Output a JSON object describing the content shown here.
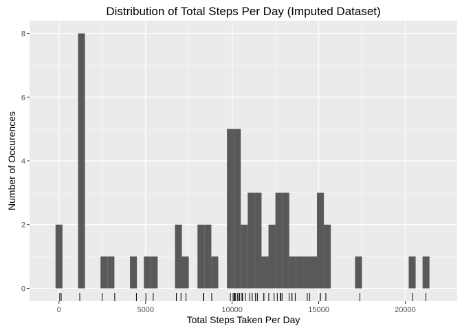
{
  "chart_data": {
    "type": "bar",
    "title": "Distribution of Total Steps Per Day (Imputed Dataset)",
    "xlabel": "Total Steps Taken Per Day",
    "ylabel": "Number of Occurences",
    "xlim": [
      -1700,
      23000
    ],
    "ylim": [
      -0.4,
      8.4
    ],
    "x_ticks": [
      0,
      5000,
      10000,
      15000,
      20000
    ],
    "y_ticks": [
      0,
      2,
      4,
      6,
      8
    ],
    "bin_width": 400,
    "bins": [
      {
        "x": 0,
        "count": 2
      },
      {
        "x": 1300,
        "count": 8
      },
      {
        "x": 2600,
        "count": 1
      },
      {
        "x": 3000,
        "count": 1
      },
      {
        "x": 4300,
        "count": 1
      },
      {
        "x": 5100,
        "count": 1
      },
      {
        "x": 5500,
        "count": 1
      },
      {
        "x": 6900,
        "count": 2
      },
      {
        "x": 7300,
        "count": 1
      },
      {
        "x": 8200,
        "count": 2
      },
      {
        "x": 8600,
        "count": 2
      },
      {
        "x": 9000,
        "count": 1
      },
      {
        "x": 9900,
        "count": 5
      },
      {
        "x": 10300,
        "count": 5
      },
      {
        "x": 10700,
        "count": 2
      },
      {
        "x": 11100,
        "count": 3
      },
      {
        "x": 11500,
        "count": 3
      },
      {
        "x": 11900,
        "count": 1
      },
      {
        "x": 12300,
        "count": 2
      },
      {
        "x": 12700,
        "count": 3
      },
      {
        "x": 13100,
        "count": 3
      },
      {
        "x": 13500,
        "count": 1
      },
      {
        "x": 13900,
        "count": 1
      },
      {
        "x": 14300,
        "count": 1
      },
      {
        "x": 14700,
        "count": 1
      },
      {
        "x": 15100,
        "count": 3
      },
      {
        "x": 15500,
        "count": 2
      },
      {
        "x": 17300,
        "count": 1
      },
      {
        "x": 20400,
        "count": 1
      },
      {
        "x": 21200,
        "count": 1
      }
    ],
    "rug": [
      41,
      126,
      1200,
      2492,
      3219,
      4472,
      5018,
      5441,
      6778,
      7047,
      7336,
      8334,
      8355,
      8821,
      9900,
      10056,
      10119,
      10139,
      10183,
      10304,
      10395,
      10439,
      10571,
      10600,
      10765,
      11015,
      11162,
      11352,
      11458,
      11829,
      11834,
      12116,
      12426,
      12608,
      12787,
      12811,
      12883,
      13294,
      13452,
      13460,
      13646,
      14339,
      14478,
      15084,
      15098,
      15414,
      17382,
      20427,
      21194
    ],
    "grid": true,
    "colors": {
      "panel": "#ebebeb",
      "grid_major": "#ffffff",
      "bar": "#595959",
      "rug": "#000000"
    }
  }
}
